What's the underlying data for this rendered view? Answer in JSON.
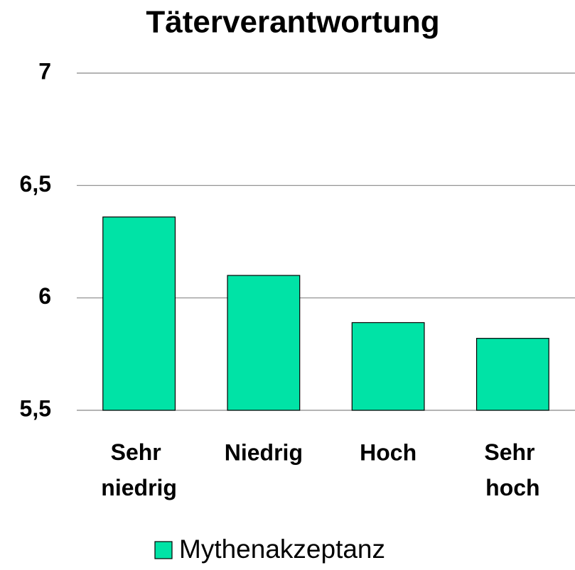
{
  "chart_data": {
    "type": "bar",
    "title": "Täterverantwortung",
    "categories": [
      "Sehr niedrig",
      "Niedrig",
      "Hoch",
      "Sehr hoch"
    ],
    "series": [
      {
        "name": "Mythenakzeptanz",
        "color": "#00e3a6",
        "values": [
          6.36,
          6.1,
          5.89,
          5.82
        ]
      }
    ],
    "ylim": [
      5.5,
      7
    ],
    "yticks": [
      {
        "value": 5.5,
        "label": "5,5"
      },
      6,
      {
        "value": 6.5,
        "label": "6,5"
      },
      7
    ],
    "grid": true,
    "legend": "bottom"
  }
}
